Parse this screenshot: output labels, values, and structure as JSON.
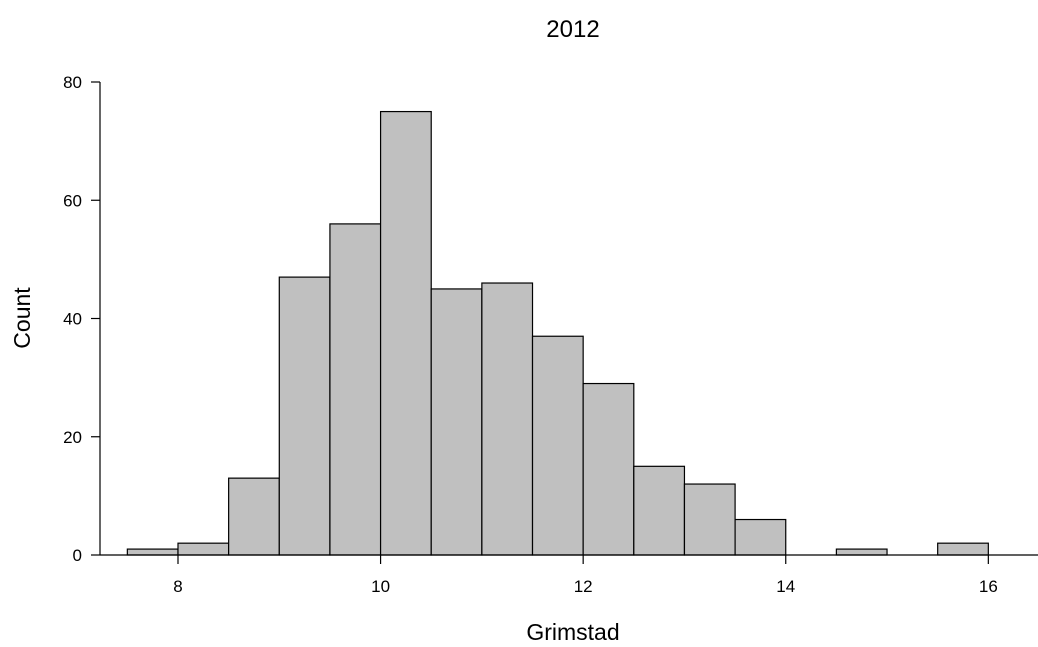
{
  "chart_data": {
    "type": "bar",
    "title": "2012",
    "xlabel": "Grimstad",
    "ylabel": "Count",
    "bin_width": 0.5,
    "bins": [
      {
        "x0": 7.5,
        "x1": 8.0,
        "count": 1
      },
      {
        "x0": 8.0,
        "x1": 8.5,
        "count": 2
      },
      {
        "x0": 8.5,
        "x1": 9.0,
        "count": 13
      },
      {
        "x0": 9.0,
        "x1": 9.5,
        "count": 47
      },
      {
        "x0": 9.5,
        "x1": 10.0,
        "count": 56
      },
      {
        "x0": 10.0,
        "x1": 10.5,
        "count": 75
      },
      {
        "x0": 10.5,
        "x1": 11.0,
        "count": 45
      },
      {
        "x0": 11.0,
        "x1": 11.5,
        "count": 46
      },
      {
        "x0": 11.5,
        "x1": 12.0,
        "count": 37
      },
      {
        "x0": 12.0,
        "x1": 12.5,
        "count": 29
      },
      {
        "x0": 12.5,
        "x1": 13.0,
        "count": 15
      },
      {
        "x0": 13.0,
        "x1": 13.5,
        "count": 12
      },
      {
        "x0": 13.5,
        "x1": 14.0,
        "count": 6
      },
      {
        "x0": 14.0,
        "x1": 14.5,
        "count": 0
      },
      {
        "x0": 14.5,
        "x1": 15.0,
        "count": 1
      },
      {
        "x0": 15.0,
        "x1": 15.5,
        "count": 0
      },
      {
        "x0": 15.5,
        "x1": 16.0,
        "count": 2
      }
    ],
    "xlim": [
      7.23,
      16.52
    ],
    "ylim": [
      0,
      80
    ],
    "xticks": [
      8,
      10,
      12,
      14,
      16
    ],
    "yticks": [
      0,
      20,
      40,
      60,
      80
    ],
    "bar_color": "#c0c0c0",
    "edge_color": "#000000",
    "grid": false,
    "legend": "none"
  }
}
